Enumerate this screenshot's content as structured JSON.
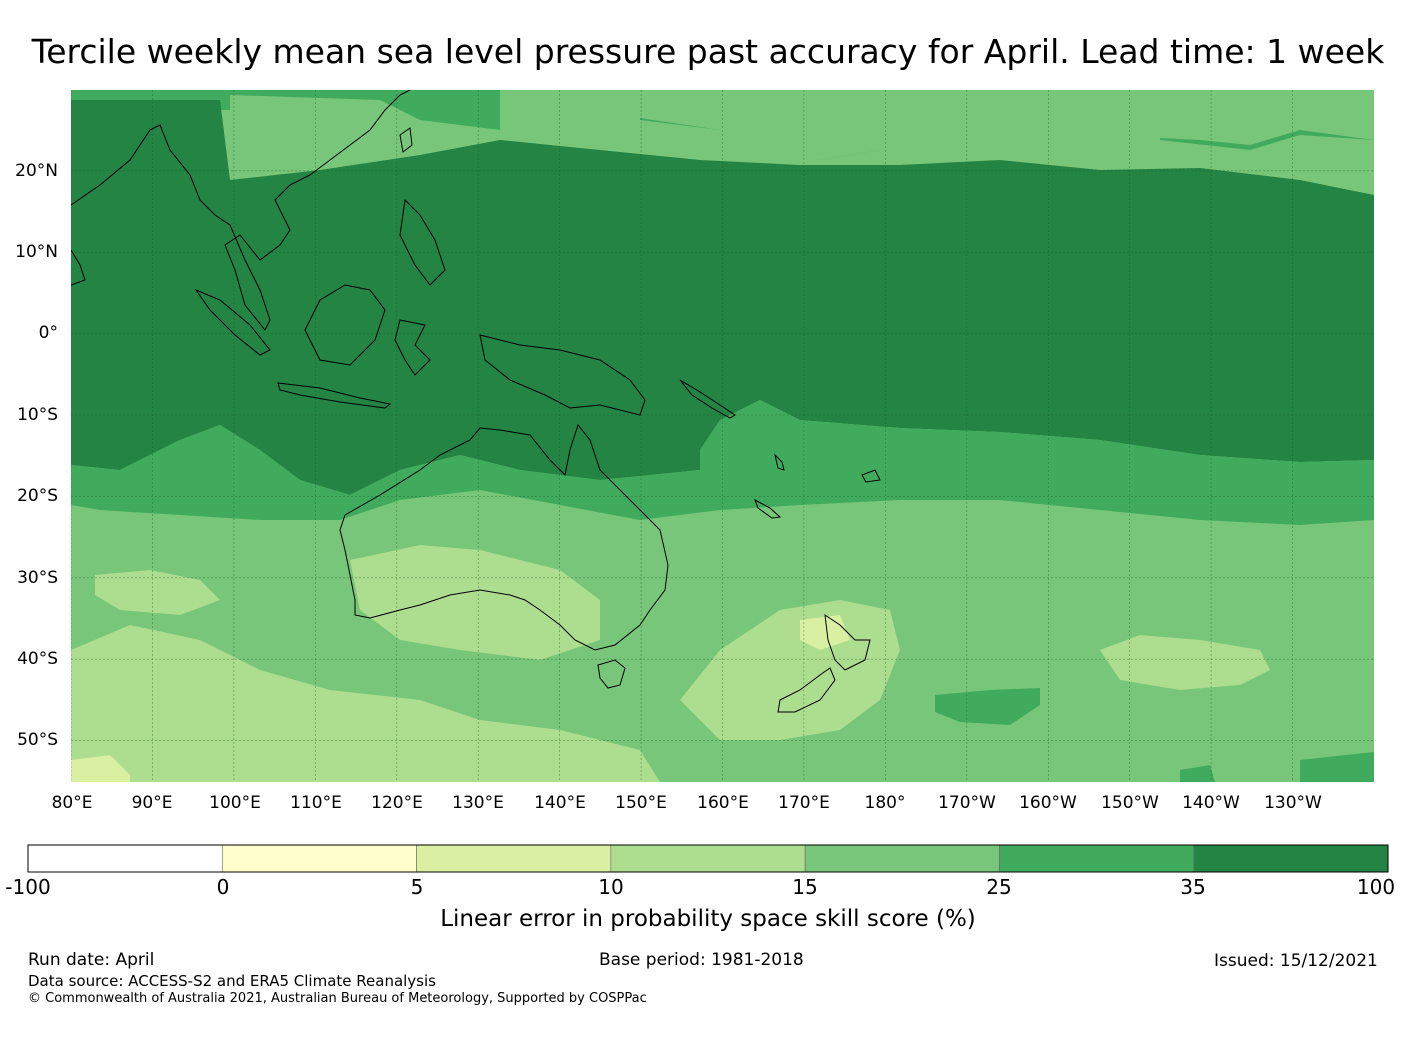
{
  "title": "Tercile weekly mean sea level pressure past accuracy for April. Lead time: 1 week",
  "map": {
    "lon_labels": [
      "80°E",
      "90°E",
      "100°E",
      "110°E",
      "120°E",
      "130°E",
      "140°E",
      "150°E",
      "160°E",
      "170°E",
      "180°",
      "170°W",
      "160°W",
      "150°W",
      "140°W",
      "130°W"
    ],
    "lat_labels": [
      "20°N",
      "10°N",
      "0°",
      "10°S",
      "20°S",
      "30°S",
      "40°S",
      "50°S"
    ],
    "extent": {
      "lon_min": 80,
      "lon_max": 240,
      "lat_min": -55,
      "lat_max": 30
    },
    "zones": [
      {
        "name": "tropical-band",
        "skill_class": "35-100"
      },
      {
        "name": "subtropical-band",
        "skill_class": "25-35"
      },
      {
        "name": "midlatitude-band",
        "skill_class": "15-25"
      },
      {
        "name": "southern-ocean-patches",
        "skill_class": "10-15"
      },
      {
        "name": "new-zealand-patch",
        "skill_class": "5-10"
      }
    ]
  },
  "colorbar": {
    "ticks": [
      "-100",
      "0",
      "5",
      "10",
      "15",
      "25",
      "35",
      "100"
    ],
    "colors": [
      "#ffffff",
      "#ffffcc",
      "#d9f0a3",
      "#addd8e",
      "#78c679",
      "#41ab5d",
      "#238443"
    ],
    "label": "Linear error in probability space skill score (%)"
  },
  "footer": {
    "run_date": "Run date: April",
    "base_period": "Base period: 1981-2018",
    "issued": "Issued: 15/12/2021",
    "data_source": "Data source: ACCESS-S2 and ERA5 Climate Reanalysis",
    "copyright": "© Commonwealth of Australia 2021, Australian Bureau of Meteorology, Supported by COSPPac"
  }
}
